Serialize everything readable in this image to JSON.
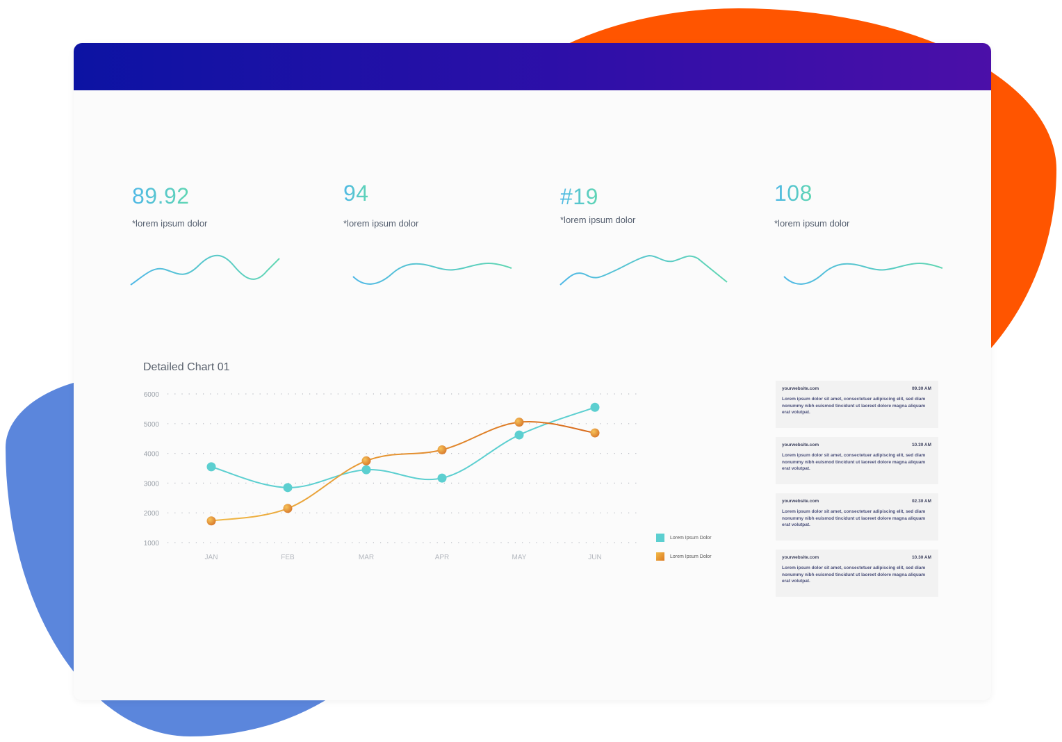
{
  "stats": [
    {
      "value": "89.92",
      "label": "*lorem ipsum dolor"
    },
    {
      "value": "94",
      "label": "*lorem ipsum dolor"
    },
    {
      "value": "#19",
      "label": "*lorem ipsum dolor"
    },
    {
      "value": "108",
      "label": "*lorem ipsum dolor"
    }
  ],
  "chart_data": {
    "type": "line",
    "title": "Detailed Chart 01",
    "categories": [
      "JAN",
      "FEB",
      "MAR",
      "APR",
      "MAY",
      "JUN"
    ],
    "yticks": [
      "6000",
      "5000",
      "4000",
      "3000",
      "2000",
      "1000"
    ],
    "ylim": [
      1000,
      6000
    ],
    "grid": true,
    "series": [
      {
        "name": "Lorem Ipsum Dolor",
        "color": "#5ccfd0",
        "values": [
          3550,
          2850,
          3450,
          3170,
          4620,
          5550
        ]
      },
      {
        "name": "Lorem Ipsum Dolor",
        "color": "#e89a32",
        "values": [
          1730,
          2150,
          3750,
          4120,
          5050,
          4690
        ]
      }
    ],
    "legend_position": "right"
  },
  "feed": [
    {
      "site": "yourwebsite.com",
      "time": "09.30 AM",
      "text": "Lorem ipsum dolor sit amet, consectetuer adipiscing elit, sed diam nonummy nibh euismod tincidunt ut laoreet dolore magna aliquam erat volutpat."
    },
    {
      "site": "yourwebsite.com",
      "time": "10.30 AM",
      "text": "Lorem ipsum dolor sit amet, consectetuer adipiscing elit, sed diam nonummy nibh euismod tincidunt ut laoreet dolore magna aliquam erat volutpat."
    },
    {
      "site": "yourwebsite.com",
      "time": "02.30 AM",
      "text": "Lorem ipsum dolor sit amet, consectetuer adipiscing elit, sed diam nonummy nibh euismod tincidunt ut laoreet dolore magna aliquam erat volutpat."
    },
    {
      "site": "yourwebsite.com",
      "time": "10.30 AM",
      "text": "Lorem ipsum dolor sit amet, consectetuer adipiscing elit, sed diam nonummy nibh euismod tincidunt ut laoreet dolore magna aliquam erat volutpat."
    }
  ]
}
